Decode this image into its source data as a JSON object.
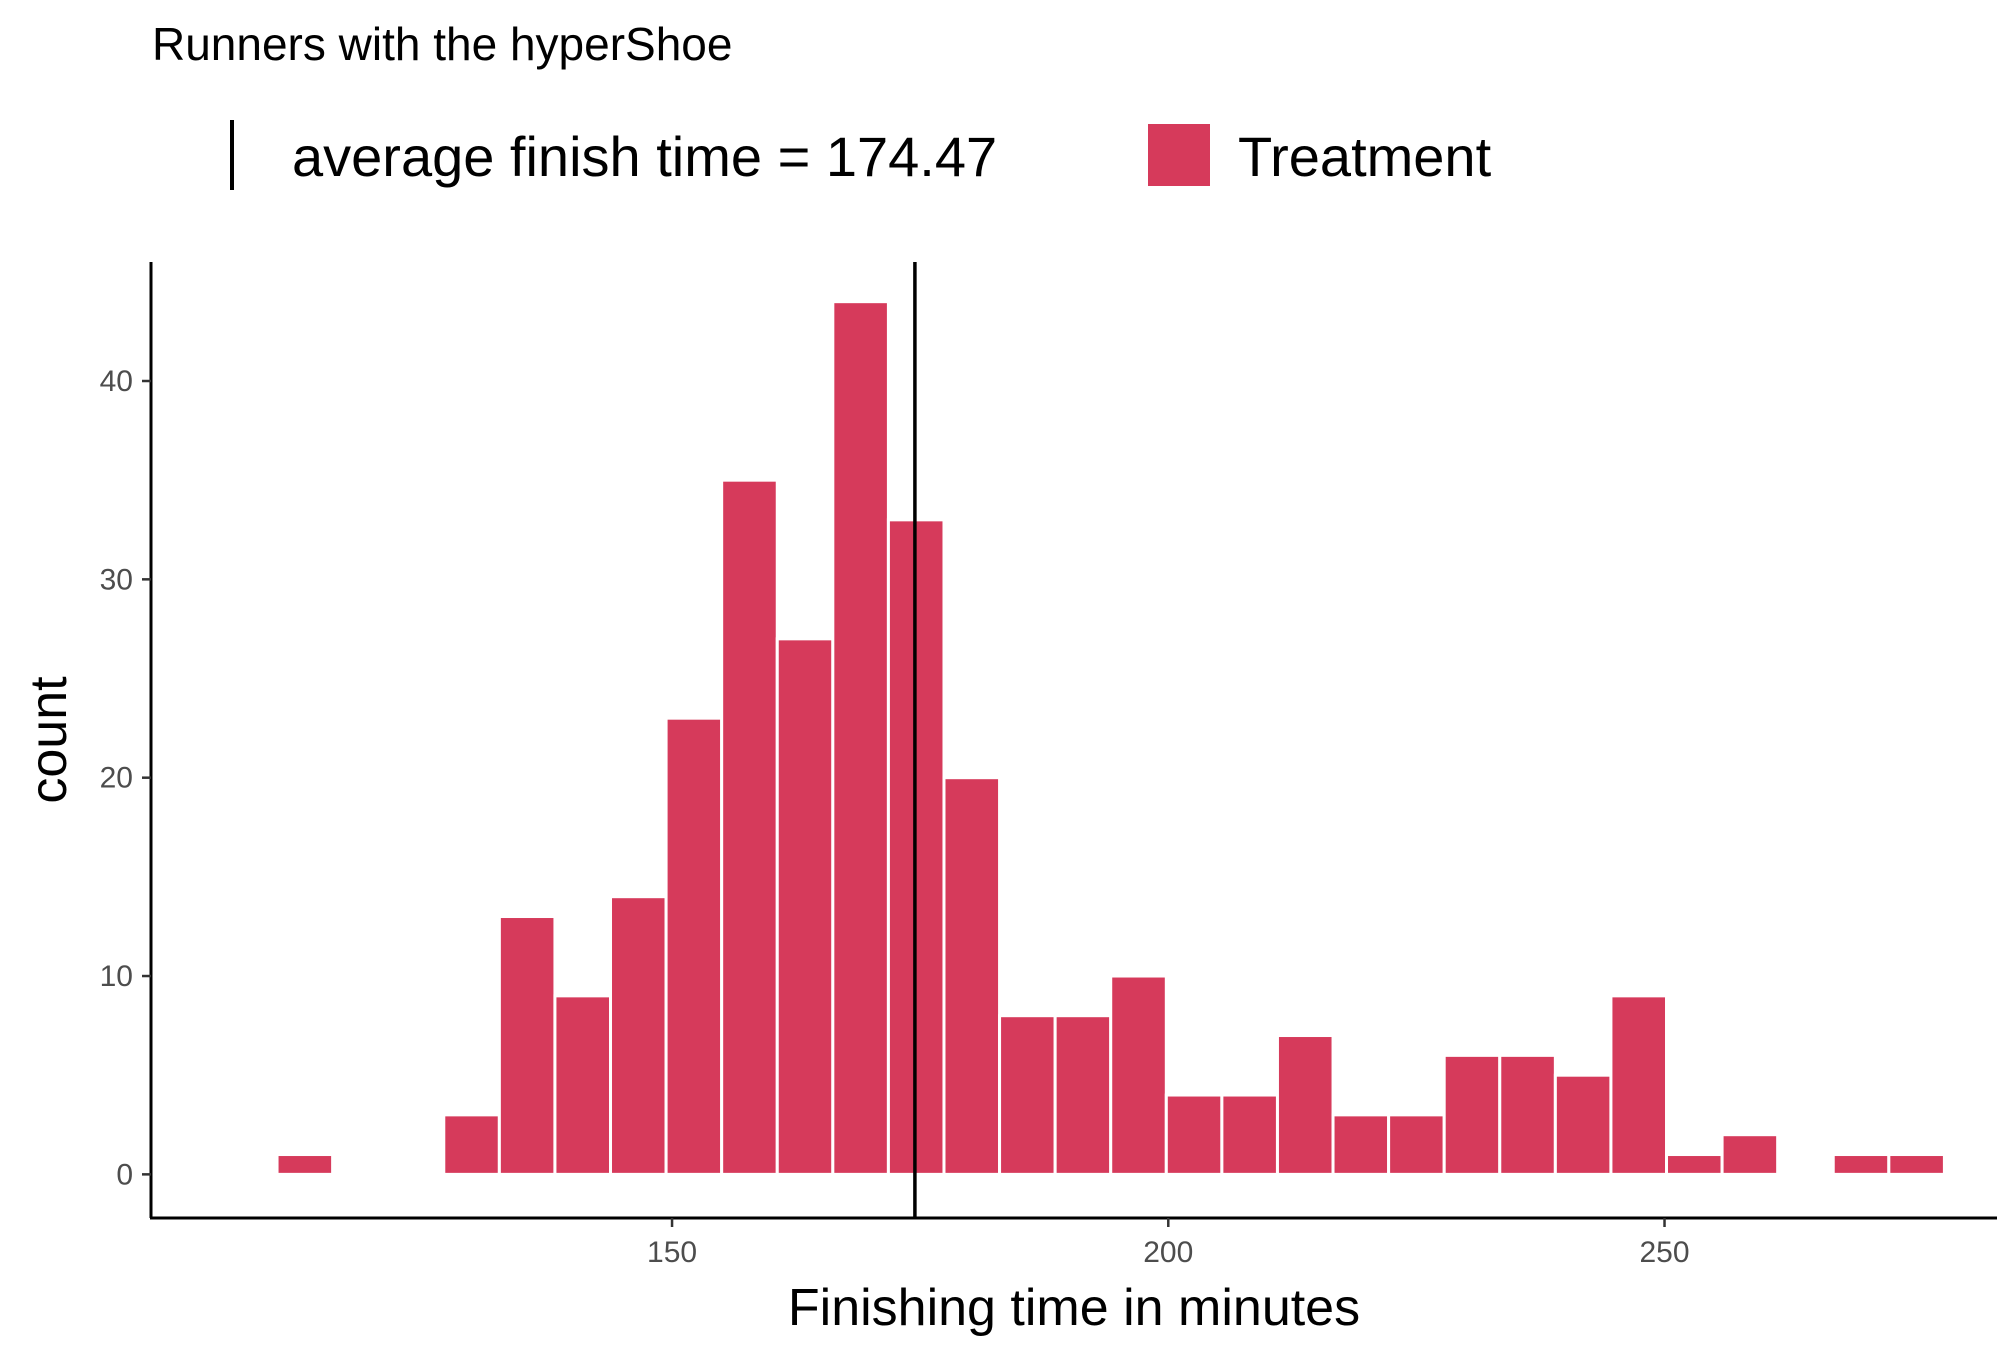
{
  "chart_data": {
    "type": "bar",
    "title": "Runners with the hyperShoe",
    "xlabel": "Finishing time in minutes",
    "ylabel": "count",
    "xlim": [
      97.5,
      283.5
    ],
    "ylim": [
      -2.2,
      46
    ],
    "xticks": [
      150,
      200,
      250
    ],
    "yticks": [
      0,
      10,
      20,
      30,
      40
    ],
    "bin_width": 5.6,
    "bin_centers": [
      113.0,
      118.6,
      124.2,
      129.8,
      135.4,
      141.0,
      146.6,
      152.2,
      157.8,
      163.4,
      169.0,
      174.6,
      180.2,
      185.8,
      191.4,
      197.0,
      202.6,
      208.2,
      213.8,
      219.4,
      225.0,
      230.6,
      236.2,
      241.8,
      247.4,
      253.0,
      258.6,
      264.2,
      269.8,
      275.4
    ],
    "counts": [
      1,
      0,
      0,
      3,
      13,
      9,
      14,
      23,
      35,
      27,
      44,
      33,
      20,
      8,
      8,
      10,
      4,
      4,
      7,
      3,
      3,
      6,
      6,
      5,
      9,
      1,
      2,
      0,
      1,
      1
    ],
    "fill_color": "#d63a5b",
    "reference_line": {
      "value": 174.47,
      "label": "average finish time = 174.47",
      "color": "#000000"
    },
    "legend": {
      "series_name": "Treatment",
      "placement": "top"
    },
    "grid": false
  }
}
